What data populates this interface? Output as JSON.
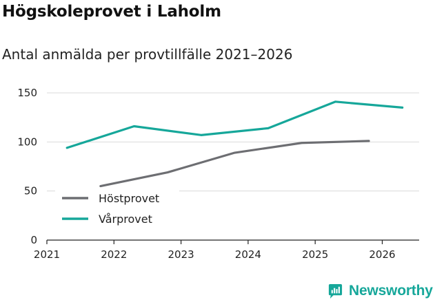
{
  "header": {
    "title": "Högskoleprovet i Laholm",
    "subtitle": "Antal anmälda per provtillfälle 2021–2026"
  },
  "brand": {
    "name": "Newsworthy",
    "color": "#16a79a"
  },
  "chart_data": {
    "type": "line",
    "title": "Högskoleprovet i Laholm",
    "subtitle": "Antal anmälda per provtillfälle 2021–2026",
    "xlabel": "",
    "ylabel": "",
    "x_ticks": [
      "2021",
      "2022",
      "2023",
      "2024",
      "2025",
      "2026"
    ],
    "xlim": [
      2021,
      2026.55
    ],
    "ylim": [
      0,
      150
    ],
    "y_ticks": [
      0,
      50,
      100,
      150
    ],
    "grid": true,
    "legend_position": "bottom-left",
    "series": [
      {
        "name": "Höstprovet",
        "color": "#6d6e72",
        "x": [
          2021.8,
          2022.8,
          2023.8,
          2024.8,
          2025.8
        ],
        "values": [
          55,
          69,
          89,
          99,
          101
        ]
      },
      {
        "name": "Vårprovet",
        "color": "#16a79a",
        "x": [
          2021.3,
          2022.3,
          2023.3,
          2024.3,
          2025.3,
          2026.3
        ],
        "values": [
          94,
          116,
          107,
          114,
          141,
          135
        ]
      }
    ]
  }
}
